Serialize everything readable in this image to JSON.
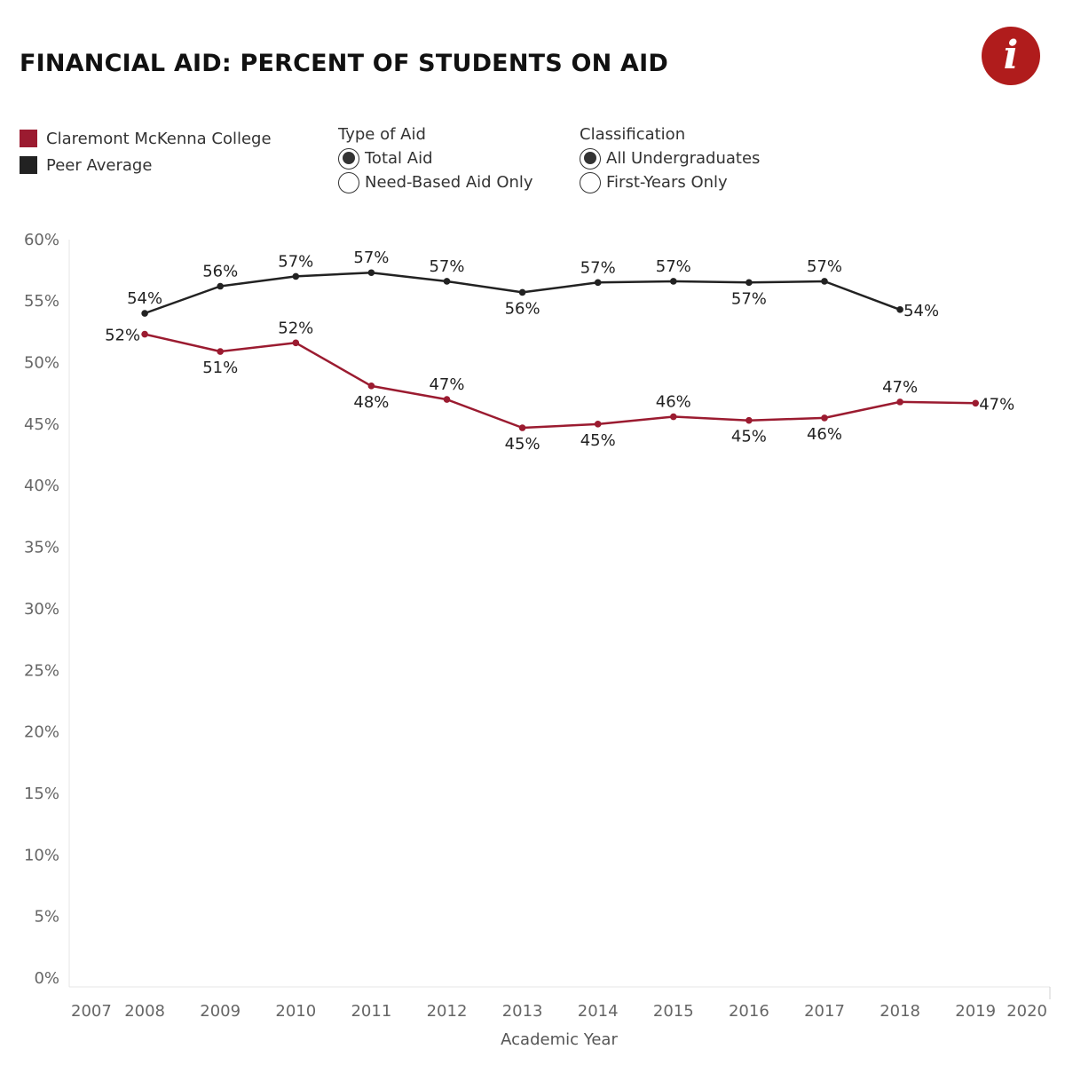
{
  "title": "FINANCIAL AID: PERCENT OF STUDENTS ON AID",
  "info_icon": "i",
  "legend": [
    {
      "label": "Claremont McKenna College",
      "color": "#9b1b30"
    },
    {
      "label": "Peer Average",
      "color": "#222222"
    }
  ],
  "filters": {
    "type_of_aid": {
      "title": "Type of Aid",
      "options": [
        {
          "label": "Total Aid",
          "selected": true
        },
        {
          "label": "Need-Based Aid Only",
          "selected": false
        }
      ]
    },
    "classification": {
      "title": "Classification",
      "options": [
        {
          "label": "All Undergraduates",
          "selected": true
        },
        {
          "label": "First-Years Only",
          "selected": false
        }
      ]
    }
  },
  "chart_data": {
    "type": "line",
    "xlabel": "Academic Year",
    "ylabel": "",
    "xlim": [
      2007,
      2020
    ],
    "ylim": [
      0,
      60
    ],
    "x_ticks": [
      "2007",
      "2008",
      "2009",
      "2010",
      "2011",
      "2012",
      "2013",
      "2014",
      "2015",
      "2016",
      "2017",
      "2018",
      "2019",
      "2020"
    ],
    "y_ticks": [
      "0%",
      "5%",
      "10%",
      "15%",
      "20%",
      "25%",
      "30%",
      "35%",
      "40%",
      "45%",
      "50%",
      "55%",
      "60%"
    ],
    "grid": false,
    "series": [
      {
        "name": "Peer Average",
        "color": "#222222",
        "x": [
          2008,
          2009,
          2010,
          2011,
          2012,
          2013,
          2014,
          2015,
          2016,
          2017,
          2018
        ],
        "values": [
          54.0,
          56.2,
          57.0,
          57.3,
          56.6,
          55.7,
          56.5,
          56.6,
          56.5,
          56.6,
          54.3
        ],
        "labels": [
          "54%",
          "56%",
          "57%",
          "57%",
          "57%",
          "56%",
          "57%",
          "57%",
          "57%",
          "57%",
          "54%"
        ],
        "label_pos": [
          "above",
          "above",
          "above",
          "above",
          "above",
          "below",
          "above",
          "above",
          "below",
          "above",
          "right"
        ]
      },
      {
        "name": "Claremont McKenna College",
        "color": "#9b1b30",
        "x": [
          2008,
          2009,
          2010,
          2011,
          2012,
          2013,
          2014,
          2015,
          2016,
          2017,
          2018,
          2019
        ],
        "values": [
          52.3,
          50.9,
          51.6,
          48.1,
          47.0,
          44.7,
          45.0,
          45.6,
          45.3,
          45.5,
          46.8,
          46.7
        ],
        "labels": [
          "52%",
          "51%",
          "52%",
          "48%",
          "47%",
          "45%",
          "45%",
          "46%",
          "45%",
          "46%",
          "47%",
          "47%"
        ],
        "label_pos": [
          "left",
          "below",
          "above",
          "below",
          "above",
          "below",
          "below",
          "above",
          "below",
          "below",
          "above",
          "right"
        ]
      }
    ]
  }
}
